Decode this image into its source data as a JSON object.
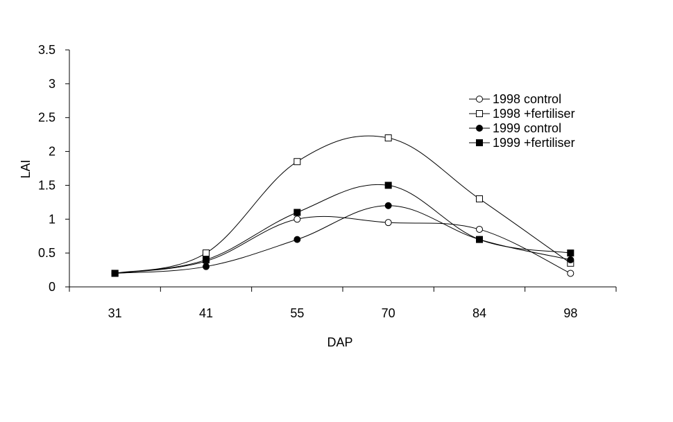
{
  "chart_data": {
    "type": "line",
    "title": "",
    "xlabel": "DAP",
    "ylabel": "LAI",
    "categories": [
      "31",
      "41",
      "55",
      "70",
      "84",
      "98"
    ],
    "ylim": [
      0,
      3.5
    ],
    "yticks": [
      "0",
      "0.5",
      "1",
      "1.5",
      "2",
      "2.5",
      "3",
      "3.5"
    ],
    "grid": false,
    "legend_position": "top-right",
    "series": [
      {
        "name": "1998 control",
        "marker": "open-circle",
        "values": [
          0.2,
          0.38,
          1.0,
          0.95,
          0.85,
          0.2
        ]
      },
      {
        "name": "1998 +fertiliser",
        "marker": "open-square",
        "values": [
          0.2,
          0.5,
          1.85,
          2.2,
          1.3,
          0.35
        ]
      },
      {
        "name": "1999 control",
        "marker": "filled-circle",
        "values": [
          0.2,
          0.3,
          0.7,
          1.2,
          0.7,
          0.4
        ]
      },
      {
        "name": "1999 +fertiliser",
        "marker": "filled-square",
        "values": [
          0.2,
          0.4,
          1.1,
          1.5,
          0.7,
          0.5
        ]
      }
    ]
  }
}
